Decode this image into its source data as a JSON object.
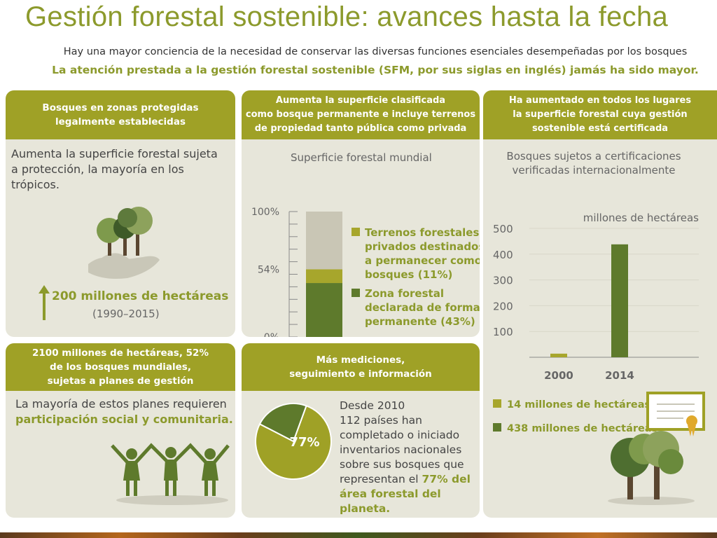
{
  "header": {
    "title": "Gestión forestal sostenible: avances hasta la fecha",
    "subtitle": "Hay una mayor conciencia de la necesidad de conservar las diversas funciones esenciales desempeñadas por los bosques",
    "subtitle2": "La atención prestada a la gestión forestal sostenible (SFM, por sus siglas en inglés) jamás ha sido mayor."
  },
  "panel1": {
    "head": [
      "Bosques en zonas protegidas",
      "legalmente establecidas"
    ],
    "text": [
      "Aumenta la superficie forestal sujeta",
      "a protección, la mayoría en los trópicos."
    ],
    "stat": "200 millones de hectáreas",
    "period": "(1990–2015)"
  },
  "panel2": {
    "head": [
      "Aumenta la superficie clasificada",
      "como bosque permanente e incluye terrenos",
      "de propiedad tanto pública como privada"
    ]
  },
  "panel3": {
    "head": [
      "Ha aumentado en todos los lugares",
      "la superficie forestal cuya gestión",
      "sostenible está certificada"
    ]
  },
  "panel4": {
    "head": [
      "2100 millones de hectáreas, 52%",
      "de los bosques mundiales,",
      "sujetas a planes de gestión"
    ],
    "text1": "La mayoría de estos planes requieren",
    "text2": "participación social y comunitaria."
  },
  "panel5": {
    "head": [
      "Más mediciones,",
      "seguimiento e información"
    ],
    "lines": [
      "Desde 2010",
      "112 países han",
      "completado o iniciado",
      "inventarios nacionales",
      "sobre sus bosques que",
      "representan el "
    ],
    "hl1": "77% del",
    "hl2": "área forestal del planeta."
  },
  "chart_data": [
    {
      "type": "bar",
      "title": "Superficie forestal mundial",
      "yticks": [
        "100%",
        "54%",
        "0%"
      ],
      "ylim": [
        0,
        100
      ],
      "series": [
        {
          "name": "Zona forestal declarada de forma permanente (43%)",
          "label_lines": [
            "Zona forestal",
            "declarada de forma",
            "permanente (43%)"
          ],
          "value": 43,
          "color": "#5e7a2c"
        },
        {
          "name": "Terrenos forestales privados destinados a permanecer como bosques (11%)",
          "label_lines": [
            "Terrenos forestales",
            "privados destinados",
            "a  permanecer como",
            "bosques (11%)"
          ],
          "value": 11,
          "color": "#a7a62c"
        },
        {
          "name": "Resto",
          "value": 46,
          "color": "#c9c6b5"
        }
      ]
    },
    {
      "type": "bar",
      "title": "Bosques sujetos a certificaciones verificadas internacionalmente",
      "title_lines": [
        "Bosques sujetos a certificaciones",
        "verificadas internacionalmente"
      ],
      "ylabel": "millones de hectáreas",
      "ylim": [
        0,
        500
      ],
      "yticks": [
        "500",
        "400",
        "300",
        "200",
        "100"
      ],
      "categories": [
        "2000",
        "2014"
      ],
      "values": [
        14,
        438
      ],
      "colors": [
        "#a7a62c",
        "#5e7a2c"
      ],
      "legend": [
        "14 millones de hectáreas",
        "438 millones de hectáreas"
      ]
    },
    {
      "type": "pie",
      "values": [
        77,
        23
      ],
      "label": "77%",
      "colors": [
        "#9fa126",
        "#5e7a2c"
      ]
    }
  ]
}
